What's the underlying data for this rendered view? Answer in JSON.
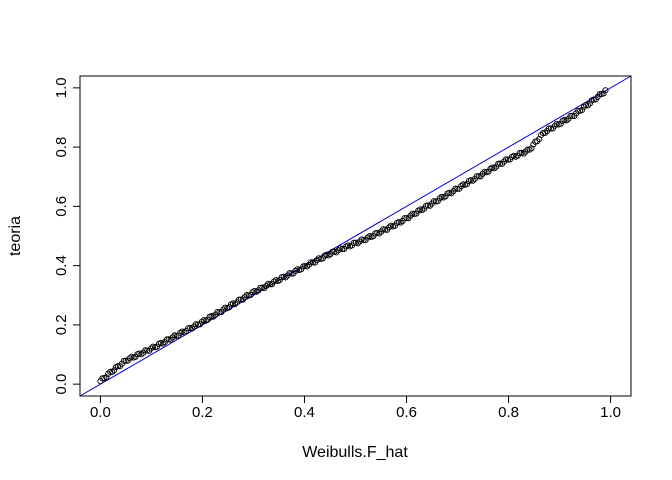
{
  "chart_data": {
    "type": "scatter",
    "title": "",
    "xlabel": "Weibulls.F_hat",
    "ylabel": "teoria",
    "xlim": [
      -0.04,
      1.04
    ],
    "ylim": [
      -0.04,
      1.04
    ],
    "x_ticks": [
      0.0,
      0.2,
      0.4,
      0.6,
      0.8,
      1.0
    ],
    "y_ticks": [
      0.0,
      0.2,
      0.4,
      0.6,
      0.8,
      1.0
    ],
    "x_tick_labels": [
      "0.0",
      "0.2",
      "0.4",
      "0.6",
      "0.8",
      "1.0"
    ],
    "y_tick_labels": [
      "0.0",
      "0.2",
      "0.4",
      "0.6",
      "0.8",
      "1.0"
    ],
    "grid": false,
    "legend": "none",
    "colors": {
      "points": "#000000",
      "reference_line": "#0000cc"
    },
    "reference_line": {
      "intercept": 0,
      "slope": 1
    },
    "curve_knots": {
      "x": [
        0.0,
        0.02,
        0.05,
        0.1,
        0.2,
        0.3,
        0.37,
        0.45,
        0.52,
        0.58,
        0.65,
        0.72,
        0.8,
        0.84,
        0.87,
        0.93,
        0.99
      ],
      "y": [
        0.01,
        0.04,
        0.08,
        0.12,
        0.21,
        0.31,
        0.37,
        0.44,
        0.49,
        0.54,
        0.61,
        0.68,
        0.76,
        0.79,
        0.85,
        0.91,
        0.99
      ]
    },
    "n_points": 260
  }
}
